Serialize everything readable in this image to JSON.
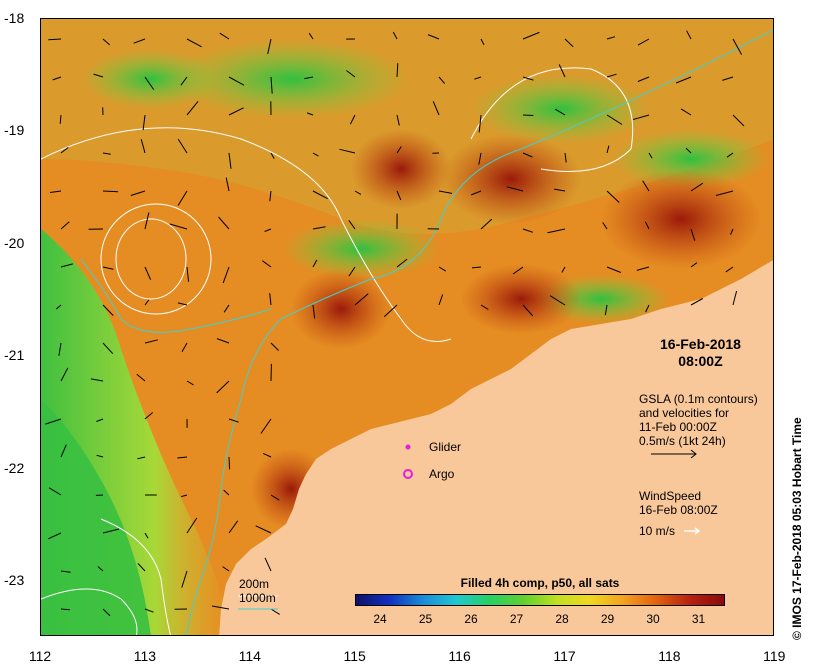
{
  "map": {
    "x_ticks": [
      "112",
      "113",
      "114",
      "115",
      "116",
      "117",
      "118",
      "119"
    ],
    "y_ticks": [
      "-18",
      "-19",
      "-20",
      "-21",
      "-22",
      "-23"
    ],
    "extent": {
      "lon": [
        112,
        119
      ],
      "lat": [
        -23.5,
        -18
      ]
    }
  },
  "datestamp": {
    "date": "16-Feb-2018",
    "time": "08:00Z"
  },
  "gsla": {
    "line1": "GSLA (0.1m contours)",
    "line2": "and velocities for",
    "line3": "11-Feb 00:00Z",
    "line4": "0.5m/s (1kt 24h)"
  },
  "wind": {
    "line1": "WindSpeed",
    "line2": "16-Feb 08:00Z",
    "scale": "10 m/s"
  },
  "legend": {
    "glider": "Glider",
    "argo": "Argo",
    "bathy_200": "200m",
    "bathy_1000": "1000m"
  },
  "colorbar": {
    "title": "Filled 4h comp, p50, all sats",
    "labels": [
      "24",
      "25",
      "26",
      "27",
      "28",
      "29",
      "30",
      "31"
    ]
  },
  "credit": "© IMOS 17-Feb-2018 05:03 Hobart Time",
  "colors": {
    "land": "#f8c89a",
    "warm": "#e08a20",
    "hot": "#a01a0a",
    "cool": "#60d040",
    "contour_white": "#ffffff",
    "contour_cyan": "#40d0d0"
  }
}
